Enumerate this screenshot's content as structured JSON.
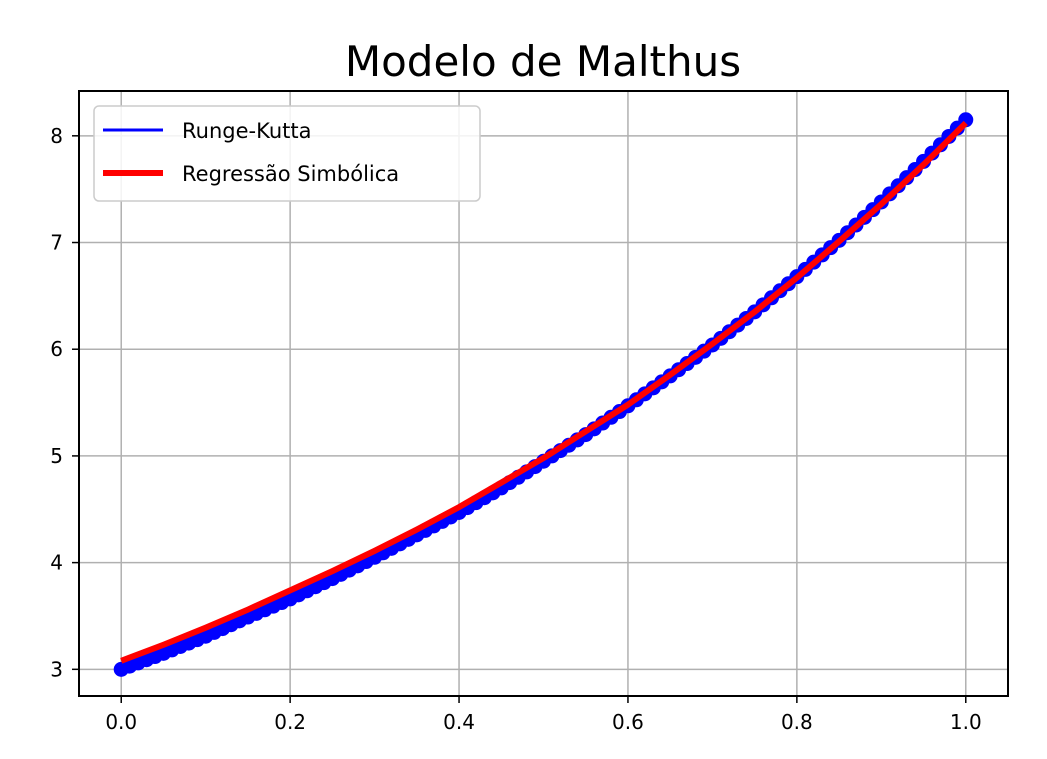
{
  "chart_data": {
    "type": "line",
    "title": "Modelo de Malthus",
    "xlabel": "",
    "ylabel": "",
    "xlim": [
      -0.05,
      1.05
    ],
    "ylim": [
      2.75,
      8.42
    ],
    "x_ticks": [
      0.0,
      0.2,
      0.4,
      0.6,
      0.8,
      1.0
    ],
    "x_tick_labels": [
      "0.0",
      "0.2",
      "0.4",
      "0.6",
      "0.8",
      "1.0"
    ],
    "y_ticks": [
      3,
      4,
      5,
      6,
      7,
      8
    ],
    "y_tick_labels": [
      "3",
      "4",
      "5",
      "6",
      "7",
      "8"
    ],
    "grid": true,
    "legend_position": "upper-left",
    "series": [
      {
        "name": "Runge-Kutta",
        "color": "#0000ff",
        "style": "line-with-circle-markers",
        "x": [
          0.0,
          0.05,
          0.1,
          0.15,
          0.2,
          0.25,
          0.3,
          0.35,
          0.4,
          0.45,
          0.5,
          0.55,
          0.6,
          0.65,
          0.7,
          0.75,
          0.8,
          0.85,
          0.9,
          0.95,
          1.0
        ],
        "y": [
          3.0,
          3.15,
          3.31,
          3.49,
          3.66,
          3.85,
          4.05,
          4.26,
          4.47,
          4.7,
          4.95,
          5.2,
          5.47,
          5.75,
          6.04,
          6.35,
          6.68,
          7.02,
          7.38,
          7.76,
          8.15
        ]
      },
      {
        "name": "Regressão Simbólica",
        "color": "#ff0000",
        "style": "thick-line",
        "x": [
          0.0,
          0.05,
          0.1,
          0.15,
          0.2,
          0.25,
          0.3,
          0.35,
          0.4,
          0.45,
          0.5,
          0.55,
          0.6,
          0.65,
          0.7,
          0.75,
          0.8,
          0.85,
          0.9,
          0.95,
          1.0
        ],
        "y": [
          3.08,
          3.23,
          3.39,
          3.56,
          3.74,
          3.92,
          4.11,
          4.31,
          4.52,
          4.75,
          4.98,
          5.23,
          5.48,
          5.76,
          6.05,
          6.35,
          6.67,
          7.01,
          7.36,
          7.73,
          8.12
        ]
      }
    ]
  }
}
